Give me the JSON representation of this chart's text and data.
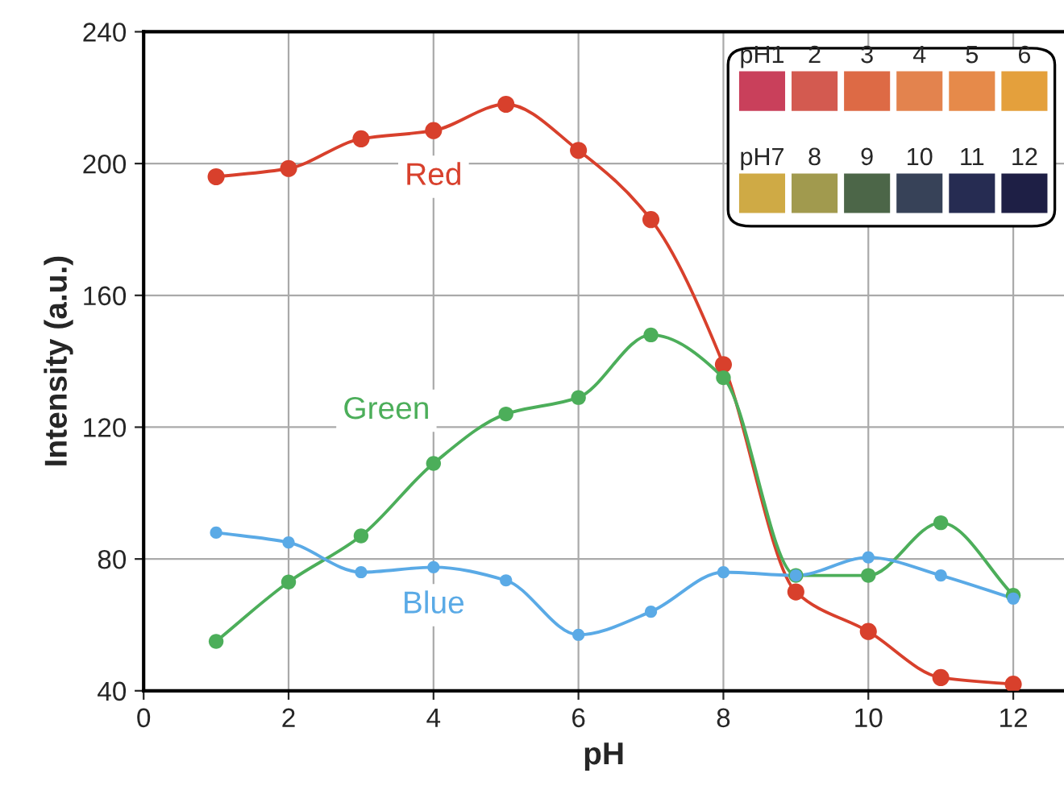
{
  "chart_data": {
    "type": "line",
    "xlabel": "pH",
    "ylabel": "Intensity (a.u.)",
    "x": [
      1,
      2,
      3,
      4,
      5,
      6,
      7,
      8,
      9,
      10,
      11,
      12
    ],
    "series": [
      {
        "name": "Red",
        "color": "#d8402c",
        "values": [
          196,
          198.5,
          207.5,
          210,
          218,
          204,
          183,
          139,
          70,
          58,
          44,
          42
        ]
      },
      {
        "name": "Green",
        "color": "#4cae5a",
        "values": [
          55,
          73,
          87,
          109,
          124,
          129,
          148,
          135,
          75,
          75,
          91,
          69
        ]
      },
      {
        "name": "Blue",
        "color": "#5aaae6",
        "values": [
          88,
          85,
          76,
          77.5,
          73.5,
          57,
          64,
          76,
          75,
          80.5,
          75,
          68
        ]
      }
    ],
    "xlim": [
      0,
      12.7
    ],
    "xticks": [
      0,
      2,
      4,
      6,
      8,
      10,
      12
    ],
    "ylim": [
      40,
      240
    ],
    "yticks": [
      40,
      80,
      120,
      160,
      200,
      240
    ],
    "grid": true,
    "legend": false,
    "marker": "circle",
    "line_style": "solid",
    "annotations": [
      "pH1",
      "2",
      "3",
      "4",
      "5",
      "6",
      "pH7",
      "8",
      "9",
      "10",
      "11",
      "12"
    ]
  }
}
